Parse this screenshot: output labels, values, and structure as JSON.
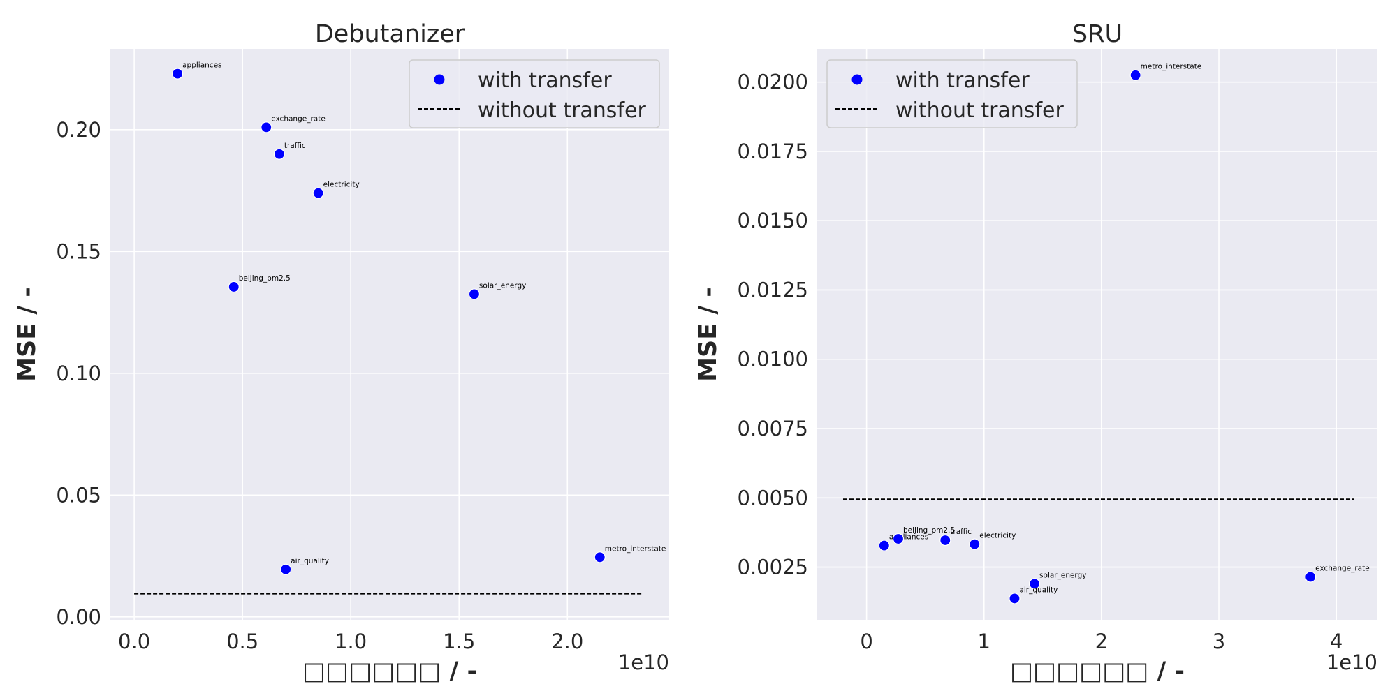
{
  "chart_data": [
    {
      "type": "scatter",
      "title": "Debutanizer",
      "xlabel": "□□□□□□ / -",
      "ylabel": "MSE / -",
      "x_offset_label": "1e10",
      "xlim": [
        -0.11,
        2.47
      ],
      "ylim": [
        -0.0012,
        0.2332
      ],
      "xticks": [
        {
          "value": 0.0,
          "label": "0.0"
        },
        {
          "value": 0.5,
          "label": "0.5"
        },
        {
          "value": 1.0,
          "label": "1.0"
        },
        {
          "value": 1.5,
          "label": "1.5"
        },
        {
          "value": 2.0,
          "label": "2.0"
        }
      ],
      "yticks": [
        {
          "value": 0.0,
          "label": "0.00"
        },
        {
          "value": 0.05,
          "label": "0.05"
        },
        {
          "value": 0.1,
          "label": "0.10"
        },
        {
          "value": 0.15,
          "label": "0.15"
        },
        {
          "value": 0.2,
          "label": "0.20"
        }
      ],
      "grid": true,
      "legend": {
        "position": "upper right",
        "entries": [
          "with transfer",
          "without transfer"
        ]
      },
      "series": [
        {
          "name": "with transfer",
          "kind": "scatter",
          "color": "#0000ff",
          "points": [
            {
              "x": 0.2,
              "y": 0.223,
              "label": "appliances"
            },
            {
              "x": 0.61,
              "y": 0.201,
              "label": "exchange_rate"
            },
            {
              "x": 0.67,
              "y": 0.19,
              "label": "traffic"
            },
            {
              "x": 0.85,
              "y": 0.174,
              "label": "electricity"
            },
            {
              "x": 0.46,
              "y": 0.1355,
              "label": "beijing_pm2.5"
            },
            {
              "x": 1.57,
              "y": 0.1325,
              "label": "solar_energy"
            },
            {
              "x": 0.7,
              "y": 0.0195,
              "label": "air_quality"
            },
            {
              "x": 2.15,
              "y": 0.0245,
              "label": "metro_interstate"
            }
          ]
        },
        {
          "name": "without transfer",
          "kind": "hline",
          "color": "#000000",
          "y": 0.0095,
          "x_range": [
            0.0,
            2.35
          ]
        }
      ]
    },
    {
      "type": "scatter",
      "title": "SRU",
      "xlabel": "□□□□□□ / -",
      "ylabel": "MSE / -",
      "x_offset_label": "1e10",
      "xlim": [
        -0.42,
        4.35
      ],
      "ylim": [
        0.0006,
        0.0212
      ],
      "xticks": [
        {
          "value": 0,
          "label": "0"
        },
        {
          "value": 1,
          "label": "1"
        },
        {
          "value": 2,
          "label": "2"
        },
        {
          "value": 3,
          "label": "3"
        },
        {
          "value": 4,
          "label": "4"
        }
      ],
      "yticks": [
        {
          "value": 0.0025,
          "label": "0.0025"
        },
        {
          "value": 0.005,
          "label": "0.0050"
        },
        {
          "value": 0.0075,
          "label": "0.0075"
        },
        {
          "value": 0.01,
          "label": "0.0100"
        },
        {
          "value": 0.0125,
          "label": "0.0125"
        },
        {
          "value": 0.015,
          "label": "0.0150"
        },
        {
          "value": 0.0175,
          "label": "0.0175"
        },
        {
          "value": 0.02,
          "label": "0.0200"
        }
      ],
      "grid": true,
      "legend": {
        "position": "upper left",
        "entries": [
          "with transfer",
          "without transfer"
        ]
      },
      "series": [
        {
          "name": "with transfer",
          "kind": "scatter",
          "color": "#0000ff",
          "points": [
            {
              "x": 2.29,
              "y": 0.02025,
              "label": "metro_interstate"
            },
            {
              "x": 0.15,
              "y": 0.00328,
              "label": "appliances"
            },
            {
              "x": 0.27,
              "y": 0.00352,
              "label": "beijing_pm2.5"
            },
            {
              "x": 0.67,
              "y": 0.00347,
              "label": "traffic"
            },
            {
              "x": 0.92,
              "y": 0.00333,
              "label": "electricity"
            },
            {
              "x": 1.43,
              "y": 0.0019,
              "label": "solar_energy"
            },
            {
              "x": 1.26,
              "y": 0.00137,
              "label": "air_quality"
            },
            {
              "x": 3.78,
              "y": 0.00215,
              "label": "exchange_rate"
            }
          ]
        },
        {
          "name": "without transfer",
          "kind": "hline",
          "color": "#000000",
          "y": 0.00495,
          "x_range": [
            -0.2,
            4.15
          ]
        }
      ]
    }
  ]
}
